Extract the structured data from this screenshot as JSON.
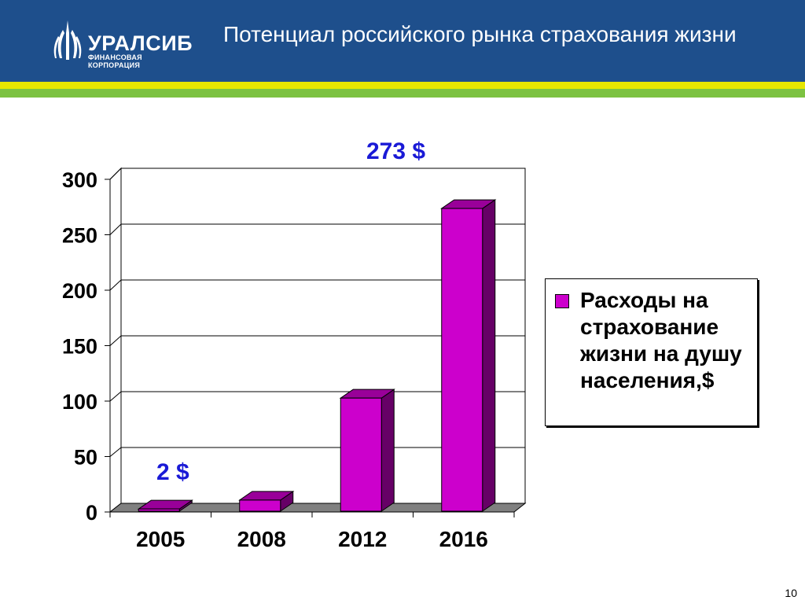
{
  "header": {
    "title": "Потенциал российского рынка страхования жизни",
    "logo_name": "УРАЛСИБ",
    "logo_sub": "ФИНАНСОВАЯ КОРПОРАЦИЯ"
  },
  "colors": {
    "header_bg": "#1e4f8c",
    "stripe_yellow": "#e6e600",
    "stripe_green": "#7cc242",
    "bar": "#cc00cc",
    "annotation": "#1a1ad6"
  },
  "annotations": {
    "top": "273 $",
    "bottom": "2 $"
  },
  "page_number": "10",
  "chart_data": {
    "type": "bar",
    "categories": [
      "2005",
      "2008",
      "2012",
      "2016"
    ],
    "series": [
      {
        "name": "Расходы на страхование жизни на душу населения,$",
        "values": [
          2,
          10,
          102,
          273
        ]
      }
    ],
    "yticks": [
      "0",
      "50",
      "100",
      "150",
      "200",
      "250",
      "300"
    ],
    "ylim": [
      0,
      300
    ],
    "grid": true,
    "legend_position": "right",
    "three_d": true
  }
}
